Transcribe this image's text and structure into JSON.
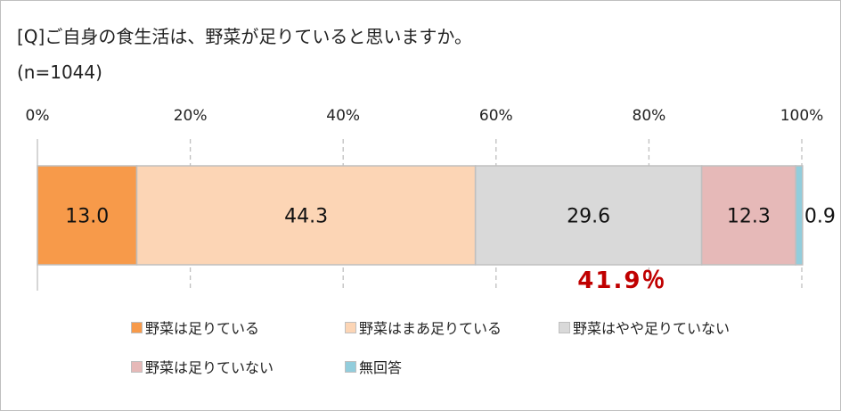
{
  "chart_data": {
    "type": "bar",
    "orientation": "horizontal-stacked-100",
    "title": "[Q]ご自身の食生活は、野菜が足りていると思いますか。",
    "subtitle": "(n=1044)",
    "xlim": [
      0,
      100
    ],
    "x_ticks": [
      "0%",
      "20%",
      "40%",
      "60%",
      "80%",
      "100%"
    ],
    "grid": true,
    "legend_position": "bottom",
    "series": [
      {
        "name": "野菜は足りている",
        "value": 13.0,
        "label": "13.0",
        "color": "#f79a4a"
      },
      {
        "name": "野菜はまあ足りている",
        "value": 44.3,
        "label": "44.3",
        "color": "#fcd5b5"
      },
      {
        "name": "野菜はやや足りていない",
        "value": 29.6,
        "label": "29.6",
        "color": "#d9d9d9"
      },
      {
        "name": "野菜は足りていない",
        "value": 12.3,
        "label": "12.3",
        "color": "#e6b9b8"
      },
      {
        "name": "無回答",
        "value": 0.9,
        "label": "0.9",
        "color": "#92cddc"
      }
    ],
    "annotation": {
      "text": "41.9％",
      "color": "#c00000"
    }
  }
}
